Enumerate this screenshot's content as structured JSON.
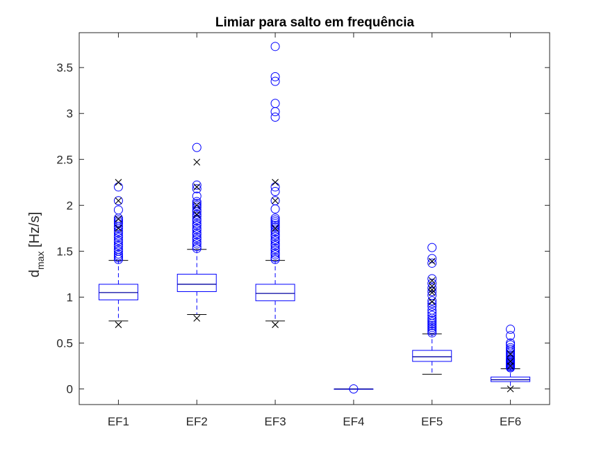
{
  "chart_data": {
    "type": "boxplot",
    "title": "Limiar para salto em frequência",
    "ylabel": {
      "base": "d",
      "subscript": "max",
      "unit": " [Hz/s]"
    },
    "ylim": [
      -0.17,
      3.88
    ],
    "yticks": [
      0,
      0.5,
      1,
      1.5,
      2,
      2.5,
      3,
      3.5
    ],
    "ytick_labels": [
      "0",
      "0.5",
      "1",
      "1.5",
      "2",
      "2.5",
      "3",
      "3.5"
    ],
    "categories": [
      "EF1",
      "EF2",
      "EF3",
      "EF4",
      "EF5",
      "EF6"
    ],
    "grid": false,
    "colors": {
      "box": "#0000ff",
      "median": "#0000a0",
      "whisker": "#0000ff",
      "outlier": "#0000ff",
      "extreme": "#000000",
      "axis": "#262626"
    },
    "boxes": [
      {
        "category": "EF1",
        "q1": 0.97,
        "median": 1.05,
        "q3": 1.14,
        "whisker_low": 0.74,
        "whisker_high": 1.4,
        "outliers": [
          1.41,
          1.43,
          1.45,
          1.47,
          1.5,
          1.52,
          1.55,
          1.57,
          1.6,
          1.62,
          1.65,
          1.67,
          1.7,
          1.72,
          1.75,
          1.77,
          1.8,
          1.82,
          1.84,
          1.86,
          1.95,
          2.05,
          2.2
        ],
        "extremes": [
          0.7,
          1.75,
          1.85,
          2.05,
          2.25
        ]
      },
      {
        "category": "EF2",
        "q1": 1.06,
        "median": 1.14,
        "q3": 1.25,
        "whisker_low": 0.81,
        "whisker_high": 1.52,
        "outliers": [
          1.53,
          1.55,
          1.58,
          1.6,
          1.63,
          1.65,
          1.68,
          1.7,
          1.73,
          1.75,
          1.78,
          1.8,
          1.83,
          1.85,
          1.88,
          1.9,
          1.93,
          1.95,
          1.98,
          2.0,
          2.02,
          2.04,
          2.1,
          2.18,
          2.22,
          2.63
        ],
        "extremes": [
          0.77,
          1.9,
          2.0,
          2.2,
          2.47
        ]
      },
      {
        "category": "EF3",
        "q1": 0.96,
        "median": 1.04,
        "q3": 1.14,
        "whisker_low": 0.74,
        "whisker_high": 1.4,
        "outliers": [
          1.41,
          1.43,
          1.46,
          1.48,
          1.51,
          1.53,
          1.56,
          1.58,
          1.61,
          1.63,
          1.66,
          1.68,
          1.71,
          1.73,
          1.76,
          1.78,
          1.8,
          1.82,
          1.84,
          1.86,
          1.96,
          2.05,
          2.15,
          2.2,
          2.96,
          3.02,
          3.11,
          3.35,
          3.4,
          3.73
        ],
        "extremes": [
          0.7,
          1.75,
          2.05,
          2.25
        ]
      },
      {
        "category": "EF4",
        "q1": 0,
        "median": 0,
        "q3": 0,
        "whisker_low": 0,
        "whisker_high": 0,
        "outliers": [
          0
        ],
        "extremes": []
      },
      {
        "category": "EF5",
        "q1": 0.3,
        "median": 0.35,
        "q3": 0.42,
        "whisker_low": 0.16,
        "whisker_high": 0.6,
        "outliers": [
          0.61,
          0.63,
          0.65,
          0.67,
          0.69,
          0.71,
          0.73,
          0.75,
          0.77,
          0.8,
          0.83,
          0.86,
          0.9,
          0.93,
          0.96,
          1.02,
          1.06,
          1.1,
          1.15,
          1.2,
          1.37,
          1.42,
          1.54
        ],
        "extremes": [
          0.95,
          1.05,
          1.08,
          1.12,
          1.18,
          1.39
        ]
      },
      {
        "category": "EF6",
        "q1": 0.08,
        "median": 0.1,
        "q3": 0.13,
        "whisker_low": 0.01,
        "whisker_high": 0.22,
        "outliers": [
          0.23,
          0.24,
          0.25,
          0.26,
          0.27,
          0.28,
          0.29,
          0.3,
          0.31,
          0.32,
          0.33,
          0.35,
          0.37,
          0.39,
          0.41,
          0.43,
          0.45,
          0.48,
          0.5,
          0.58,
          0.65
        ],
        "extremes": [
          0.0,
          0.25,
          0.3,
          0.38
        ]
      }
    ]
  }
}
